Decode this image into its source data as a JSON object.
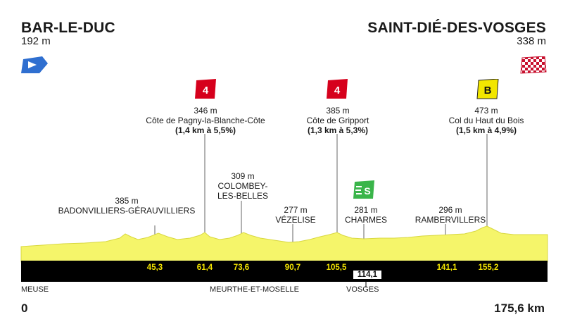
{
  "start": {
    "city": "BAR-LE-DUC",
    "altitude": "192 m"
  },
  "finish": {
    "city": "SAINT-DIÉ-DES-VOSGES",
    "altitude": "338 m"
  },
  "climbs": [
    {
      "category": "4",
      "altitude": "346 m",
      "name": "Côte de Pagny-la-Blanche-Côte",
      "detail": "(1,4 km à 5,5%)",
      "badge_color": "#d6001c"
    },
    {
      "category": "4",
      "altitude": "385 m",
      "name": "Côte de Gripport",
      "detail": "(1,3 km à 5,3%)",
      "badge_color": "#d6001c"
    },
    {
      "category": "B",
      "altitude": "473 m",
      "name": "Col du Haut du Bois",
      "detail": "(1,5 km à 4,9%)",
      "badge_color": "#f2e600"
    }
  ],
  "sprint": {
    "symbol": "S",
    "badge_color": "#3ab54a"
  },
  "places": [
    {
      "altitude": "385 m",
      "name": "BADONVILLIERS-GÉRAUVILLIERS"
    },
    {
      "altitude": "309 m",
      "name_line1": "COLOMBEY-",
      "name_line2": "LES-BELLES"
    },
    {
      "altitude": "277 m",
      "name": "VÉZELISE"
    },
    {
      "altitude": "281 m",
      "name": "CHARMES"
    },
    {
      "altitude": "296 m",
      "name": "RAMBERVILLERS"
    }
  ],
  "km_marks": [
    "45,3",
    "61,4",
    "73,6",
    "90,7",
    "105,5",
    "114,1",
    "141,1",
    "155,2"
  ],
  "departments": [
    "MEUSE",
    "MEURTHE-ET-MOSELLE",
    "VOSGES"
  ],
  "distance": {
    "start": "0",
    "end": "175,6 km"
  },
  "colors": {
    "profile": "#f5f56a",
    "road": "#000000",
    "km_text": "#f5e600"
  }
}
